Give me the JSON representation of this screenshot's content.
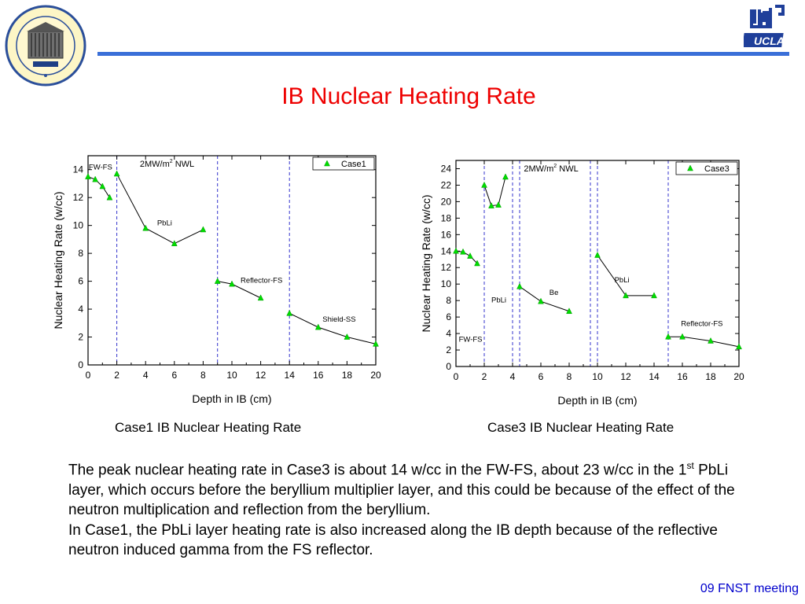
{
  "slide": {
    "title": "IB Nuclear Heating Rate",
    "paragraph1_a": "The peak nuclear heating rate in Case3 is about 14 w/cc in the FW-FS, about 23 w/cc in the 1",
    "paragraph1_sup": "st",
    "paragraph1_b": " PbLi layer, which occurs before the beryllium multiplier layer, and this could be because of the effect of the neutron multiplication and reflection from the beryllium.",
    "paragraph2": "In Case1, the PbLi layer heating rate is also increased along the IB depth because of the reflective neutron induced gamma from the FS reflector.",
    "footer": "09 FNST meeting",
    "accent_color": "#3a6fd8",
    "title_color": "#ee0000",
    "footer_color": "#0000cc"
  },
  "logos": {
    "left": "university seal",
    "right": "UCLA logo"
  },
  "captions": {
    "case1": "Case1 IB Nuclear Heating Rate",
    "case3": "Case3 IB Nuclear Heating Rate"
  },
  "chart_data": [
    {
      "type": "line",
      "xlabel": "Depth in IB (cm)",
      "ylabel": "Nuclear Heating Rate (w/cc)",
      "xlim": [
        0,
        20
      ],
      "ylim": [
        0,
        15
      ],
      "xticks": [
        0,
        2,
        4,
        6,
        8,
        10,
        12,
        14,
        16,
        18,
        20
      ],
      "yticks": [
        0,
        2,
        4,
        6,
        8,
        10,
        12,
        14
      ],
      "legend_position": "top-right",
      "marker": "triangle",
      "marker_color": "#00dd00",
      "line_color": "#000000",
      "boundary_color": "#3333cc",
      "boundaries": [
        2,
        9,
        14
      ],
      "note": "2MW/m",
      "note_sup": "2",
      "note_after": " NWL",
      "series": [
        {
          "name": "Case1",
          "segments": [
            [
              [
                0,
                13.5
              ],
              [
                0.5,
                13.3
              ],
              [
                1,
                12.8
              ],
              [
                1.5,
                12.0
              ]
            ],
            [
              [
                2,
                13.7
              ],
              [
                4,
                9.8
              ],
              [
                6,
                8.7
              ],
              [
                8,
                9.7
              ]
            ],
            [
              [
                9,
                6.0
              ],
              [
                10,
                5.8
              ],
              [
                12,
                4.8
              ]
            ],
            [
              [
                14,
                3.7
              ],
              [
                16,
                2.7
              ],
              [
                18,
                2.0
              ],
              [
                20,
                1.5
              ]
            ]
          ]
        }
      ],
      "annotations": [
        {
          "text": "FW-FS",
          "x": 0.05,
          "y": 14.0
        },
        {
          "text": "PbLi",
          "x": 4.8,
          "y": 10.0
        },
        {
          "text": "Reflector-FS",
          "x": 10.6,
          "y": 5.9
        },
        {
          "text": "Shield-SS",
          "x": 16.3,
          "y": 3.1
        }
      ]
    },
    {
      "type": "line",
      "xlabel": "Depth in IB (cm)",
      "ylabel": "Nuclear Heating Rate (w/cc)",
      "xlim": [
        0,
        20
      ],
      "ylim": [
        0,
        25
      ],
      "xticks": [
        0,
        2,
        4,
        6,
        8,
        10,
        12,
        14,
        16,
        18,
        20
      ],
      "yticks": [
        0,
        2,
        4,
        6,
        8,
        10,
        12,
        14,
        16,
        18,
        20,
        22,
        24
      ],
      "legend_position": "top-right",
      "marker": "triangle",
      "marker_color": "#00dd00",
      "line_color": "#000000",
      "boundary_color": "#3333cc",
      "boundaries": [
        2,
        4,
        4.5,
        9.5,
        10,
        15
      ],
      "note": "2MW/m",
      "note_sup": "2",
      "note_after": " NWL",
      "series": [
        {
          "name": "Case3",
          "segments": [
            [
              [
                0,
                14.0
              ],
              [
                0.5,
                13.9
              ],
              [
                1,
                13.4
              ],
              [
                1.5,
                12.5
              ]
            ],
            [
              [
                2,
                22.0
              ],
              [
                2.5,
                19.5
              ],
              [
                3,
                19.6
              ],
              [
                3.5,
                23.0
              ]
            ],
            [
              [
                4.5,
                9.7
              ],
              [
                6,
                7.9
              ],
              [
                8,
                6.7
              ]
            ],
            [
              [
                10,
                13.5
              ],
              [
                12,
                8.6
              ],
              [
                14,
                8.6
              ]
            ],
            [
              [
                15,
                3.6
              ],
              [
                16,
                3.6
              ],
              [
                18,
                3.1
              ],
              [
                20,
                2.4
              ]
            ]
          ]
        }
      ],
      "annotations": [
        {
          "text": "FW-FS",
          "x": 0.2,
          "y": 3.0
        },
        {
          "text": "PbLi",
          "x": 2.5,
          "y": 7.8
        },
        {
          "text": "Be",
          "x": 6.6,
          "y": 8.7
        },
        {
          "text": "PbLi",
          "x": 11.2,
          "y": 10.2
        },
        {
          "text": "Reflector-FS",
          "x": 15.9,
          "y": 4.9
        }
      ]
    }
  ]
}
